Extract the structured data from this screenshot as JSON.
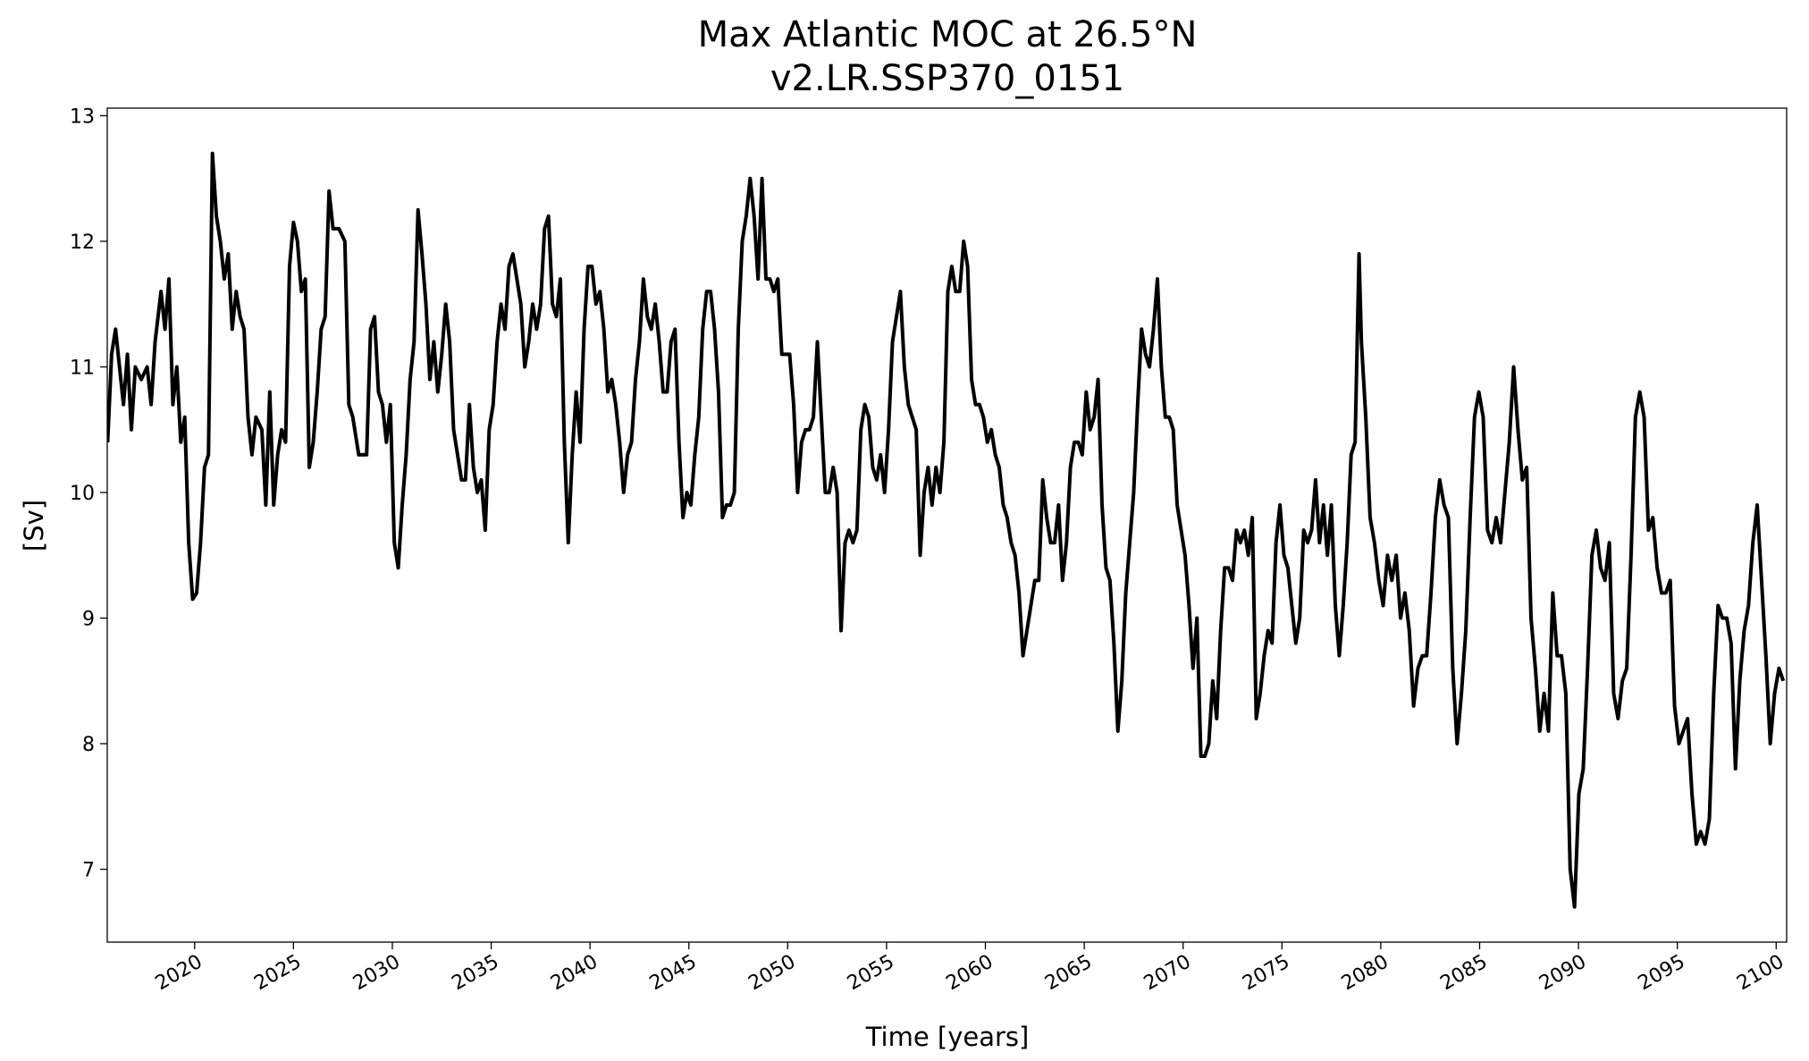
{
  "chart_data": {
    "type": "line",
    "title": "Max Atlantic MOC at 26.5°N",
    "subtitle": "v2.LR.SSP370_0151",
    "xlabel": "Time [years]",
    "ylabel": "[Sv]",
    "color": "#000000",
    "xlim": [
      2015.58,
      2100.53
    ],
    "ylim": [
      6.42,
      13.06
    ],
    "xticks": [
      2020,
      2025,
      2030,
      2035,
      2040,
      2045,
      2050,
      2055,
      2060,
      2065,
      2070,
      2075,
      2080,
      2085,
      2090,
      2095,
      2100
    ],
    "yticks": [
      7,
      8,
      9,
      10,
      11,
      12,
      13
    ],
    "grid": false,
    "x": [
      2015.6,
      2015.8,
      2016.0,
      2016.2,
      2016.4,
      2016.6,
      2016.8,
      2017.0,
      2017.3,
      2017.6,
      2017.8,
      2018.0,
      2018.3,
      2018.5,
      2018.7,
      2018.9,
      2019.1,
      2019.3,
      2019.5,
      2019.7,
      2019.9,
      2020.1,
      2020.3,
      2020.5,
      2020.7,
      2020.9,
      2021.1,
      2021.3,
      2021.5,
      2021.7,
      2021.9,
      2022.1,
      2022.3,
      2022.5,
      2022.7,
      2022.9,
      2023.1,
      2023.4,
      2023.6,
      2023.8,
      2024.0,
      2024.2,
      2024.4,
      2024.6,
      2024.8,
      2025.0,
      2025.2,
      2025.4,
      2025.6,
      2025.8,
      2026.0,
      2026.2,
      2026.4,
      2026.6,
      2026.8,
      2027.0,
      2027.3,
      2027.6,
      2027.8,
      2028.0,
      2028.3,
      2028.5,
      2028.7,
      2028.9,
      2029.1,
      2029.3,
      2029.5,
      2029.7,
      2029.9,
      2030.1,
      2030.3,
      2030.5,
      2030.7,
      2030.9,
      2031.1,
      2031.3,
      2031.5,
      2031.7,
      2031.9,
      2032.1,
      2032.3,
      2032.5,
      2032.7,
      2032.9,
      2033.1,
      2033.3,
      2033.5,
      2033.7,
      2033.9,
      2034.1,
      2034.3,
      2034.5,
      2034.7,
      2034.9,
      2035.1,
      2035.3,
      2035.5,
      2035.7,
      2035.9,
      2036.1,
      2036.3,
      2036.5,
      2036.7,
      2036.9,
      2037.1,
      2037.3,
      2037.5,
      2037.7,
      2037.9,
      2038.1,
      2038.3,
      2038.5,
      2038.7,
      2038.9,
      2039.1,
      2039.3,
      2039.5,
      2039.7,
      2039.9,
      2040.1,
      2040.3,
      2040.5,
      2040.7,
      2040.9,
      2041.1,
      2041.3,
      2041.5,
      2041.7,
      2041.9,
      2042.1,
      2042.3,
      2042.5,
      2042.7,
      2042.9,
      2043.1,
      2043.3,
      2043.5,
      2043.7,
      2043.9,
      2044.1,
      2044.3,
      2044.5,
      2044.7,
      2044.9,
      2045.1,
      2045.3,
      2045.5,
      2045.7,
      2045.9,
      2046.1,
      2046.3,
      2046.5,
      2046.7,
      2046.9,
      2047.1,
      2047.3,
      2047.5,
      2047.7,
      2047.9,
      2048.1,
      2048.3,
      2048.5,
      2048.7,
      2048.9,
      2049.1,
      2049.3,
      2049.5,
      2049.7,
      2049.9,
      2050.1,
      2050.3,
      2050.5,
      2050.7,
      2050.9,
      2051.1,
      2051.3,
      2051.5,
      2051.7,
      2051.9,
      2052.1,
      2052.3,
      2052.5,
      2052.7,
      2052.9,
      2053.1,
      2053.3,
      2053.5,
      2053.7,
      2053.9,
      2054.1,
      2054.3,
      2054.5,
      2054.7,
      2054.9,
      2055.1,
      2055.3,
      2055.5,
      2055.7,
      2055.9,
      2056.1,
      2056.3,
      2056.5,
      2056.7,
      2056.9,
      2057.1,
      2057.3,
      2057.5,
      2057.7,
      2057.9,
      2058.1,
      2058.3,
      2058.5,
      2058.7,
      2058.9,
      2059.1,
      2059.3,
      2059.5,
      2059.7,
      2059.9,
      2060.1,
      2060.3,
      2060.5,
      2060.7,
      2060.9,
      2061.1,
      2061.3,
      2061.5,
      2061.7,
      2061.9,
      2062.1,
      2062.3,
      2062.5,
      2062.7,
      2062.9,
      2063.1,
      2063.3,
      2063.5,
      2063.7,
      2063.9,
      2064.1,
      2064.3,
      2064.5,
      2064.7,
      2064.9,
      2065.1,
      2065.3,
      2065.5,
      2065.7,
      2065.9,
      2066.1,
      2066.3,
      2066.5,
      2066.7,
      2066.9,
      2067.1,
      2067.3,
      2067.5,
      2067.7,
      2067.9,
      2068.1,
      2068.3,
      2068.5,
      2068.7,
      2068.9,
      2069.1,
      2069.3,
      2069.5,
      2069.7,
      2069.9,
      2070.1,
      2070.3,
      2070.5,
      2070.7,
      2070.9,
      2071.1,
      2071.3,
      2071.5,
      2071.7,
      2071.9,
      2072.1,
      2072.3,
      2072.5,
      2072.7,
      2072.9,
      2073.1,
      2073.3,
      2073.5,
      2073.7,
      2073.9,
      2074.1,
      2074.3,
      2074.5,
      2074.7,
      2074.9,
      2075.1,
      2075.3,
      2075.5,
      2075.7,
      2075.9,
      2076.1,
      2076.3,
      2076.5,
      2076.7,
      2076.9,
      2077.1,
      2077.3,
      2077.5,
      2077.7,
      2077.9,
      2078.1,
      2078.3,
      2078.5,
      2078.7,
      2078.9,
      2079.02,
      2079.24,
      2079.46,
      2079.68,
      2079.9,
      2080.12,
      2080.34,
      2080.56,
      2080.78,
      2081.0,
      2081.22,
      2081.44,
      2081.66,
      2081.88,
      2082.1,
      2082.32,
      2082.54,
      2082.76,
      2082.98,
      2083.2,
      2083.42,
      2083.64,
      2083.86,
      2084.08,
      2084.3,
      2084.52,
      2084.74,
      2084.96,
      2085.18,
      2085.4,
      2085.62,
      2085.84,
      2086.06,
      2086.28,
      2086.5,
      2086.72,
      2086.94,
      2087.16,
      2087.38,
      2087.6,
      2087.82,
      2088.04,
      2088.26,
      2088.48,
      2088.7,
      2088.92,
      2089.14,
      2089.36,
      2089.58,
      2089.8,
      2090.02,
      2090.24,
      2090.46,
      2090.68,
      2090.9,
      2091.12,
      2091.34,
      2091.56,
      2091.78,
      2092.0,
      2092.22,
      2092.44,
      2092.66,
      2092.88,
      2093.1,
      2093.32,
      2093.54,
      2093.76,
      2093.98,
      2094.2,
      2094.42,
      2094.64,
      2094.86,
      2095.08,
      2095.3,
      2095.52,
      2095.74,
      2095.96,
      2096.18,
      2096.4,
      2096.62,
      2096.84,
      2097.06,
      2097.28,
      2097.5,
      2097.72,
      2097.94,
      2098.16,
      2098.38,
      2098.6,
      2098.82,
      2099.04,
      2099.26,
      2099.48,
      2099.7,
      2099.92,
      2100.14,
      2100.36
    ],
    "values": [
      10.4,
      11.1,
      11.3,
      11.0,
      10.7,
      11.1,
      10.5,
      11.0,
      10.9,
      11.0,
      10.7,
      11.2,
      11.6,
      11.3,
      11.7,
      10.7,
      11.0,
      10.4,
      10.6,
      9.6,
      9.15,
      9.2,
      9.6,
      10.2,
      10.3,
      12.7,
      12.2,
      12.0,
      11.7,
      11.9,
      11.3,
      11.6,
      11.4,
      11.3,
      10.6,
      10.3,
      10.6,
      10.5,
      9.9,
      10.8,
      9.9,
      10.3,
      10.5,
      10.4,
      11.8,
      12.15,
      12.0,
      11.6,
      11.7,
      10.2,
      10.4,
      10.8,
      11.3,
      11.4,
      12.4,
      12.1,
      12.1,
      12.0,
      10.7,
      10.6,
      10.3,
      10.3,
      10.3,
      11.3,
      11.4,
      10.8,
      10.7,
      10.4,
      10.7,
      9.6,
      9.4,
      9.9,
      10.3,
      10.9,
      11.2,
      12.25,
      11.9,
      11.5,
      10.9,
      11.2,
      10.8,
      11.1,
      11.5,
      11.2,
      10.5,
      10.3,
      10.1,
      10.1,
      10.7,
      10.2,
      10.0,
      10.1,
      9.7,
      10.5,
      10.7,
      11.2,
      11.5,
      11.3,
      11.8,
      11.9,
      11.7,
      11.5,
      11.0,
      11.2,
      11.5,
      11.3,
      11.5,
      12.1,
      12.2,
      11.5,
      11.4,
      11.7,
      10.4,
      9.6,
      10.3,
      10.8,
      10.4,
      11.3,
      11.8,
      11.8,
      11.5,
      11.6,
      11.3,
      10.8,
      10.9,
      10.7,
      10.4,
      10.0,
      10.3,
      10.4,
      10.9,
      11.2,
      11.7,
      11.4,
      11.3,
      11.5,
      11.2,
      10.8,
      10.8,
      11.2,
      11.3,
      10.4,
      9.8,
      10.0,
      9.9,
      10.3,
      10.6,
      11.3,
      11.6,
      11.6,
      11.3,
      10.8,
      9.8,
      9.9,
      9.9,
      10.0,
      11.3,
      12.0,
      12.2,
      12.5,
      12.2,
      11.7,
      12.5,
      11.7,
      11.7,
      11.6,
      11.7,
      11.1,
      11.1,
      11.1,
      10.7,
      10.0,
      10.4,
      10.5,
      10.5,
      10.6,
      11.2,
      10.6,
      10.0,
      10.0,
      10.2,
      10.0,
      8.9,
      9.6,
      9.7,
      9.6,
      9.7,
      10.5,
      10.7,
      10.6,
      10.2,
      10.1,
      10.3,
      10.0,
      10.5,
      11.2,
      11.4,
      11.6,
      11.0,
      10.7,
      10.6,
      10.5,
      9.5,
      10.0,
      10.2,
      9.9,
      10.2,
      10.0,
      10.4,
      11.6,
      11.8,
      11.6,
      11.6,
      12.0,
      11.8,
      10.9,
      10.7,
      10.7,
      10.6,
      10.4,
      10.5,
      10.3,
      10.2,
      9.9,
      9.8,
      9.6,
      9.5,
      9.2,
      8.7,
      8.9,
      9.1,
      9.3,
      9.3,
      10.1,
      9.8,
      9.6,
      9.6,
      9.9,
      9.3,
      9.6,
      10.2,
      10.4,
      10.4,
      10.3,
      10.8,
      10.5,
      10.6,
      10.9,
      9.9,
      9.4,
      9.3,
      8.8,
      8.1,
      8.5,
      9.2,
      9.6,
      10.0,
      10.7,
      11.3,
      11.1,
      11.0,
      11.3,
      11.7,
      11.0,
      10.6,
      10.6,
      10.5,
      9.9,
      9.7,
      9.5,
      9.1,
      8.6,
      9.0,
      7.9,
      7.9,
      8.0,
      8.5,
      8.2,
      8.9,
      9.4,
      9.4,
      9.3,
      9.7,
      9.6,
      9.7,
      9.5,
      9.8,
      8.2,
      8.4,
      8.7,
      8.9,
      8.8,
      9.6,
      9.9,
      9.5,
      9.4,
      9.1,
      8.8,
      9.0,
      9.7,
      9.6,
      9.7,
      10.1,
      9.6,
      9.9,
      9.5,
      9.9,
      9.1,
      8.7,
      9.1,
      9.6,
      10.3,
      10.4,
      11.9,
      11.2,
      10.6,
      9.8,
      9.6,
      9.3,
      9.1,
      9.5,
      9.3,
      9.5,
      9.0,
      9.2,
      8.9,
      8.3,
      8.6,
      8.7,
      8.7,
      9.2,
      9.8,
      10.1,
      9.9,
      9.8,
      8.6,
      8.0,
      8.4,
      8.9,
      9.8,
      10.6,
      10.8,
      10.6,
      9.7,
      9.6,
      9.8,
      9.6,
      10.0,
      10.4,
      11.0,
      10.5,
      10.1,
      10.2,
      9.0,
      8.6,
      8.1,
      8.4,
      8.1,
      9.2,
      8.7,
      8.7,
      8.4,
      7.0,
      6.7,
      7.6,
      7.8,
      8.6,
      9.5,
      9.7,
      9.4,
      9.3,
      9.6,
      8.4,
      8.2,
      8.5,
      8.6,
      9.5,
      10.6,
      10.8,
      10.6,
      9.7,
      9.8,
      9.4,
      9.2,
      9.2,
      9.3,
      8.3,
      8.0,
      8.1,
      8.2,
      7.6,
      7.2,
      7.3,
      7.2,
      7.4,
      8.4,
      9.1,
      9.0,
      9.0,
      8.8,
      7.8,
      8.5,
      8.9,
      9.1,
      9.6,
      9.9,
      9.3,
      8.7,
      8.0,
      8.4,
      8.6,
      8.5
    ]
  }
}
